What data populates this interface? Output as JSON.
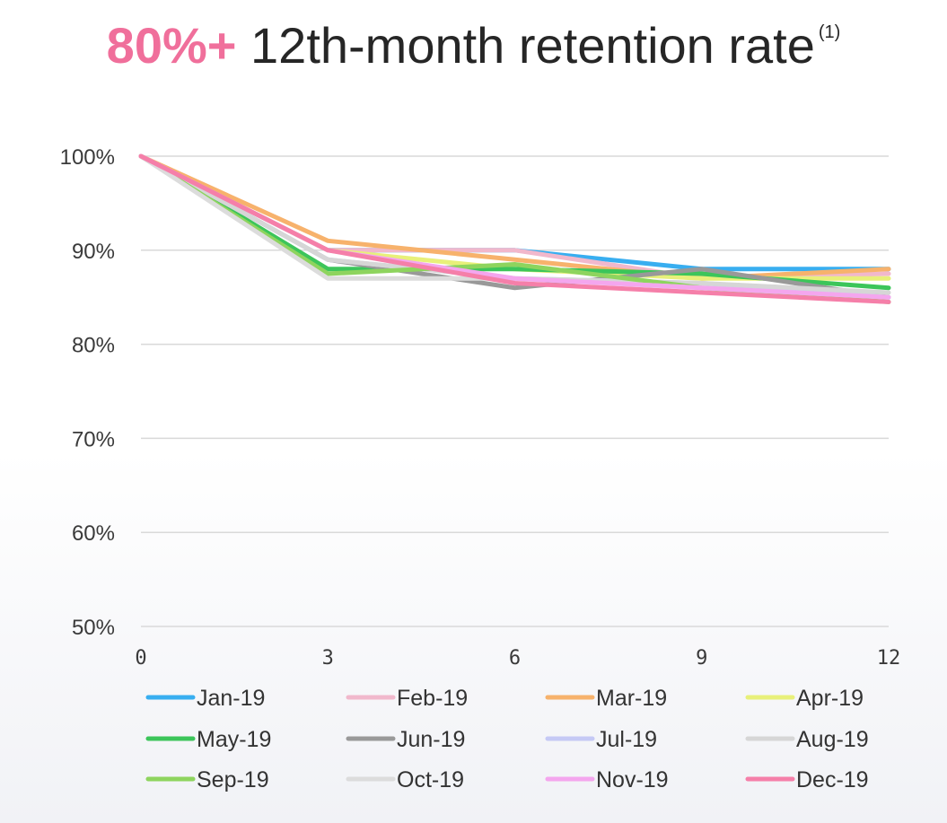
{
  "title": {
    "accent": "80%+",
    "main": "12th-month retention rate",
    "footnote": "(1)"
  },
  "chart_data": {
    "type": "line",
    "title": "80%+ 12th-month retention rate",
    "x": [
      0,
      3,
      6,
      9,
      12
    ],
    "xticks": [
      "0",
      "3",
      "6",
      "9",
      "12"
    ],
    "yticks": [
      "100%",
      "90%",
      "80%",
      "70%",
      "60%",
      "50%"
    ],
    "ylim": [
      50,
      100
    ],
    "grid": true,
    "legend_position": "bottom",
    "series": [
      {
        "name": "Jan-19",
        "color": "#38aef0",
        "values": [
          100,
          90,
          90,
          88,
          88
        ]
      },
      {
        "name": "Feb-19",
        "color": "#f1b8cc",
        "values": [
          100,
          90,
          90,
          87,
          87.5
        ]
      },
      {
        "name": "Mar-19",
        "color": "#f7b26c",
        "values": [
          100,
          91,
          89,
          87,
          88
        ]
      },
      {
        "name": "Apr-19",
        "color": "#e8f07a",
        "values": [
          100,
          90,
          88,
          87,
          87
        ]
      },
      {
        "name": "May-19",
        "color": "#3cc55a",
        "values": [
          100,
          88,
          88,
          87.5,
          86
        ]
      },
      {
        "name": "Jun-19",
        "color": "#999999",
        "values": [
          100,
          89,
          86,
          88,
          85
        ]
      },
      {
        "name": "Jul-19",
        "color": "#c5c9f5",
        "values": [
          100,
          89,
          87,
          86.5,
          85
        ]
      },
      {
        "name": "Aug-19",
        "color": "#d6d6d6",
        "values": [
          100,
          89,
          87,
          86.5,
          85.5
        ]
      },
      {
        "name": "Sep-19",
        "color": "#8ed45e",
        "values": [
          100,
          87.5,
          88.5,
          86,
          84.5
        ]
      },
      {
        "name": "Oct-19",
        "color": "#dcdcdc",
        "values": [
          100,
          87,
          87,
          86,
          85
        ]
      },
      {
        "name": "Nov-19",
        "color": "#f4a6ee",
        "values": [
          100,
          90,
          87,
          86,
          85
        ]
      },
      {
        "name": "Dec-19",
        "color": "#f57fa9",
        "values": [
          100,
          90,
          86.5,
          85.5,
          84.5
        ]
      }
    ]
  }
}
